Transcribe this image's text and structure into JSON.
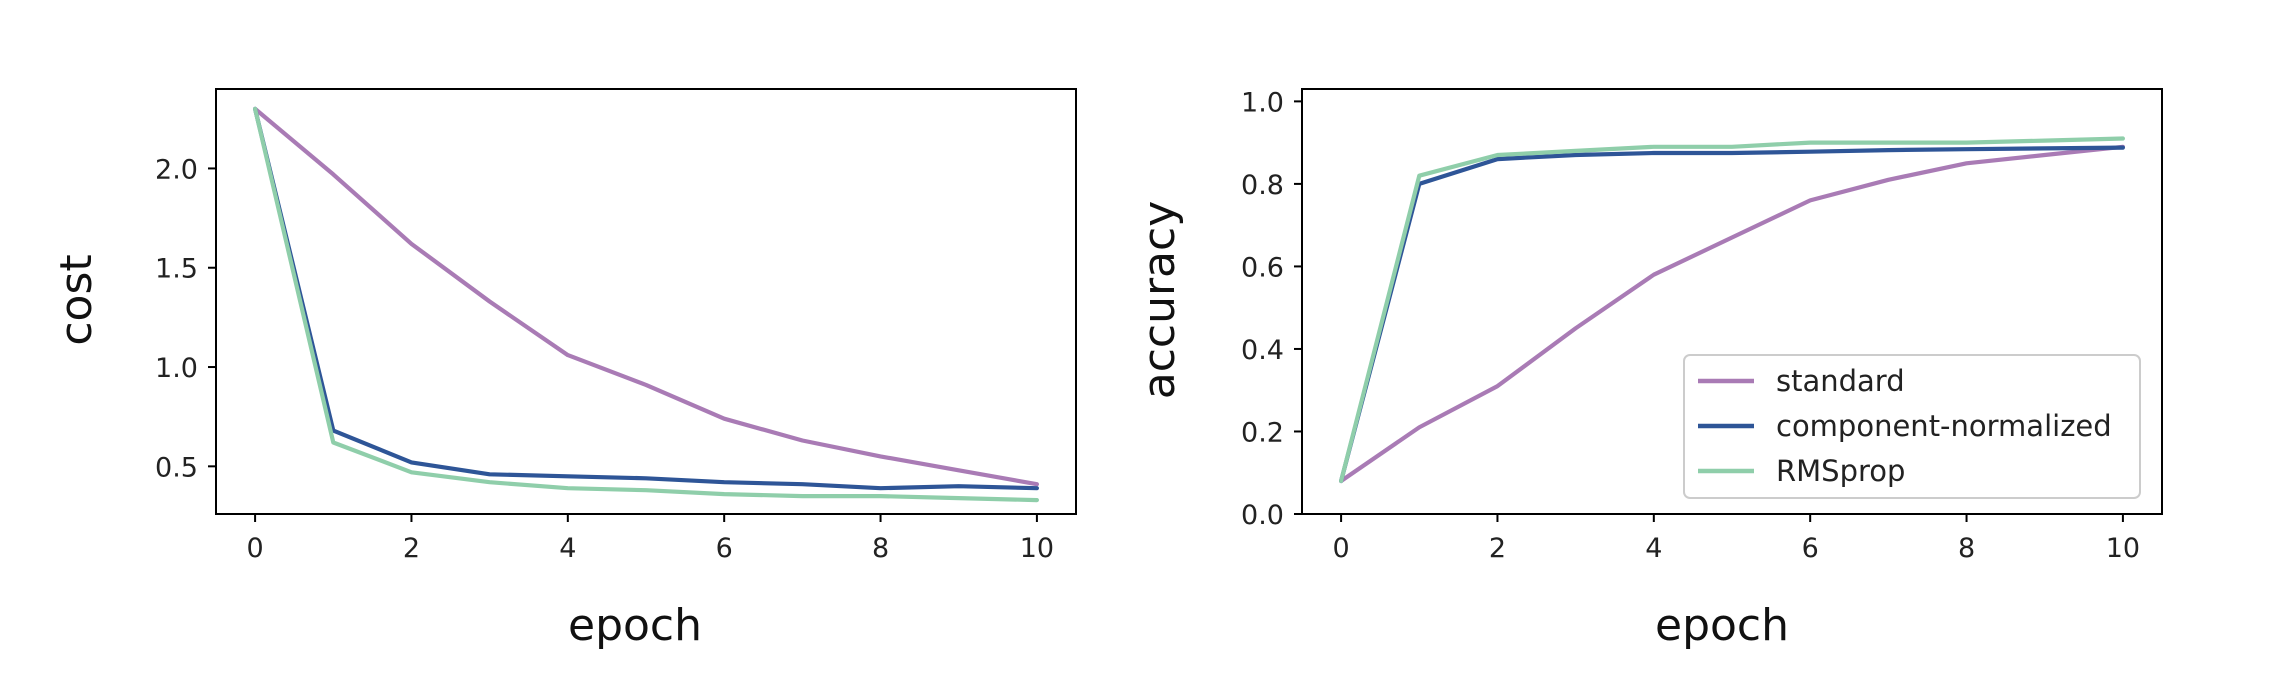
{
  "colors": {
    "standard": "#a97bb5",
    "component_normalized": "#2e5597",
    "rmsprop": "#8fceaa"
  },
  "chart_data": [
    {
      "type": "line",
      "xlabel": "epoch",
      "ylabel": "cost",
      "xlim": [
        -0.5,
        10.5
      ],
      "ylim": [
        0.26,
        2.4
      ],
      "xticks": [
        "0",
        "2",
        "4",
        "6",
        "8",
        "10"
      ],
      "yticks": [
        "0.5",
        "1.0",
        "1.5",
        "2.0"
      ],
      "grid": false,
      "x": [
        0,
        1,
        2,
        3,
        4,
        5,
        6,
        7,
        8,
        9,
        10
      ],
      "series": [
        {
          "name": "standard",
          "color_key": "standard",
          "values": [
            2.3,
            1.97,
            1.62,
            1.33,
            1.06,
            0.91,
            0.74,
            0.63,
            0.55,
            0.48,
            0.41
          ]
        },
        {
          "name": "component-normalized",
          "color_key": "component_normalized",
          "values": [
            2.3,
            0.68,
            0.52,
            0.46,
            0.45,
            0.44,
            0.42,
            0.41,
            0.39,
            0.4,
            0.39
          ]
        },
        {
          "name": "RMSprop",
          "color_key": "rmsprop",
          "values": [
            2.3,
            0.62,
            0.47,
            0.42,
            0.39,
            0.38,
            0.36,
            0.35,
            0.35,
            0.34,
            0.33
          ]
        }
      ]
    },
    {
      "type": "line",
      "xlabel": "epoch",
      "ylabel": "accuracy",
      "xlim": [
        -0.5,
        10.5
      ],
      "ylim": [
        0.0,
        1.03
      ],
      "xticks": [
        "0",
        "2",
        "4",
        "6",
        "8",
        "10"
      ],
      "yticks": [
        "0.0",
        "0.2",
        "0.4",
        "0.6",
        "0.8",
        "1.0"
      ],
      "grid": false,
      "legend": "lower-right",
      "x": [
        0,
        1,
        2,
        3,
        4,
        5,
        6,
        7,
        8,
        9,
        10
      ],
      "series": [
        {
          "name": "standard",
          "color_key": "standard",
          "values": [
            0.08,
            0.21,
            0.31,
            0.45,
            0.58,
            0.67,
            0.76,
            0.81,
            0.85,
            0.87,
            0.89
          ]
        },
        {
          "name": "component-normalized",
          "color_key": "component_normalized",
          "values": [
            0.08,
            0.8,
            0.86,
            0.87,
            0.875,
            0.875,
            0.878,
            0.882,
            0.884,
            0.886,
            0.888
          ]
        },
        {
          "name": "RMSprop",
          "color_key": "rmsprop",
          "values": [
            0.08,
            0.82,
            0.87,
            0.88,
            0.89,
            0.89,
            0.9,
            0.9,
            0.9,
            0.905,
            0.91
          ]
        }
      ]
    }
  ]
}
